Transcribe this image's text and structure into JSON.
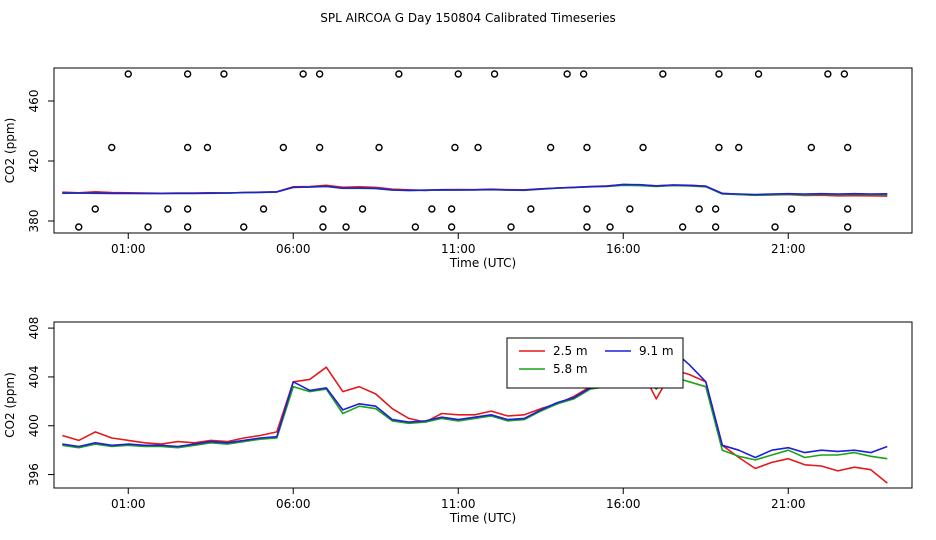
{
  "title": "SPL AIRCOA G  Day 150804  Calibrated Timeseries",
  "colors": {
    "red": "#e31a1c",
    "green": "#1aa31a",
    "blue": "#1f1fd8"
  },
  "chart_data": [
    {
      "type": "line",
      "xlabel": "Time (UTC)",
      "ylabel": "CO2 (ppm)",
      "x_ticks": [
        "01:00",
        "06:00",
        "11:00",
        "16:00",
        "21:00"
      ],
      "x_tick_hours": [
        1,
        6,
        11,
        16,
        21
      ],
      "y_ticks": [
        "380",
        "420",
        "460"
      ],
      "y_tick_values": [
        380,
        420,
        460
      ],
      "xlim": [
        -1.25,
        24.75
      ],
      "ylim": [
        372,
        482
      ],
      "grid": false,
      "x": [
        -1.0,
        -0.5,
        0.0,
        0.5,
        1.0,
        1.5,
        2.0,
        2.5,
        3.0,
        3.5,
        4.0,
        4.5,
        5.0,
        5.5,
        6.0,
        6.5,
        7.0,
        7.5,
        8.0,
        8.5,
        9.0,
        9.5,
        10.0,
        10.5,
        11.0,
        11.5,
        12.0,
        12.5,
        13.0,
        13.5,
        14.0,
        14.5,
        15.0,
        15.5,
        16.0,
        16.5,
        17.0,
        17.5,
        18.0,
        18.5,
        19.0,
        19.5,
        20.0,
        20.5,
        21.0,
        21.5,
        22.0,
        22.5,
        23.0,
        23.5,
        24.0
      ],
      "series": [
        {
          "color": "red",
          "values": [
            399.2,
            398.8,
            399.5,
            399.0,
            398.8,
            398.6,
            398.5,
            398.7,
            398.6,
            398.8,
            398.7,
            399.0,
            399.2,
            399.5,
            402.8,
            403.0,
            403.8,
            402.5,
            402.8,
            402.4,
            401.2,
            400.8,
            400.4,
            400.9,
            401.0,
            400.9,
            401.2,
            400.9,
            400.8,
            401.5,
            402.0,
            402.5,
            403.0,
            403.4,
            404.2,
            404.0,
            403.5,
            404.0,
            403.8,
            403.2,
            398.5,
            397.8,
            397.2,
            397.4,
            397.6,
            397.0,
            397.2,
            396.8,
            396.9,
            396.8,
            396.6
          ]
        },
        {
          "color": "green",
          "values": [
            398.5,
            398.6,
            398.5,
            398.4,
            398.4,
            398.3,
            398.3,
            398.4,
            398.4,
            398.5,
            398.6,
            398.9,
            399.0,
            399.3,
            402.4,
            402.6,
            403.0,
            401.8,
            401.8,
            401.6,
            400.6,
            400.3,
            400.5,
            400.7,
            400.6,
            400.7,
            400.9,
            400.6,
            400.5,
            401.2,
            401.9,
            402.3,
            402.8,
            403.0,
            403.8,
            403.6,
            403.0,
            403.6,
            403.4,
            402.8,
            398.0,
            397.6,
            397.1,
            397.5,
            397.8,
            397.5,
            397.8,
            397.6,
            397.8,
            397.6,
            397.5
          ]
        },
        {
          "color": "blue",
          "values": [
            398.6,
            398.7,
            398.6,
            398.5,
            398.5,
            398.4,
            398.4,
            398.5,
            398.5,
            398.6,
            398.7,
            399.0,
            399.1,
            399.4,
            402.5,
            402.7,
            403.1,
            401.9,
            402.0,
            401.8,
            400.7,
            400.4,
            400.6,
            400.8,
            400.7,
            400.8,
            401.0,
            400.7,
            400.6,
            401.3,
            402.0,
            402.4,
            402.9,
            403.2,
            404.4,
            404.2,
            403.4,
            404.0,
            403.8,
            403.2,
            398.3,
            398.0,
            397.6,
            398.0,
            398.2,
            398.0,
            398.2,
            398.0,
            398.2,
            398.0,
            398.1
          ]
        }
      ],
      "points": [
        {
          "x": -0.5,
          "y": 376
        },
        {
          "x": 0.0,
          "y": 388
        },
        {
          "x": 0.5,
          "y": 429
        },
        {
          "x": 1.0,
          "y": 478
        },
        {
          "x": 1.6,
          "y": 376
        },
        {
          "x": 2.2,
          "y": 388
        },
        {
          "x": 2.8,
          "y": 429
        },
        {
          "x": 2.8,
          "y": 478
        },
        {
          "x": 2.8,
          "y": 388
        },
        {
          "x": 2.8,
          "y": 376
        },
        {
          "x": 3.4,
          "y": 429
        },
        {
          "x": 3.9,
          "y": 478
        },
        {
          "x": 4.5,
          "y": 376
        },
        {
          "x": 5.1,
          "y": 388
        },
        {
          "x": 5.7,
          "y": 429
        },
        {
          "x": 6.3,
          "y": 478
        },
        {
          "x": 6.8,
          "y": 478
        },
        {
          "x": 6.8,
          "y": 429
        },
        {
          "x": 6.9,
          "y": 388
        },
        {
          "x": 6.9,
          "y": 376
        },
        {
          "x": 7.6,
          "y": 376
        },
        {
          "x": 8.1,
          "y": 388
        },
        {
          "x": 8.6,
          "y": 429
        },
        {
          "x": 9.2,
          "y": 478
        },
        {
          "x": 9.7,
          "y": 376
        },
        {
          "x": 10.2,
          "y": 388
        },
        {
          "x": 10.8,
          "y": 388
        },
        {
          "x": 10.8,
          "y": 376
        },
        {
          "x": 10.9,
          "y": 429
        },
        {
          "x": 11.0,
          "y": 478
        },
        {
          "x": 11.6,
          "y": 429
        },
        {
          "x": 12.1,
          "y": 478
        },
        {
          "x": 12.6,
          "y": 376
        },
        {
          "x": 13.2,
          "y": 388
        },
        {
          "x": 13.8,
          "y": 429
        },
        {
          "x": 14.3,
          "y": 478
        },
        {
          "x": 14.8,
          "y": 478
        },
        {
          "x": 14.9,
          "y": 429
        },
        {
          "x": 14.9,
          "y": 388
        },
        {
          "x": 14.9,
          "y": 376
        },
        {
          "x": 15.6,
          "y": 376
        },
        {
          "x": 16.2,
          "y": 388
        },
        {
          "x": 16.6,
          "y": 429
        },
        {
          "x": 17.2,
          "y": 478
        },
        {
          "x": 17.8,
          "y": 376
        },
        {
          "x": 18.3,
          "y": 388
        },
        {
          "x": 18.8,
          "y": 388
        },
        {
          "x": 18.8,
          "y": 376
        },
        {
          "x": 18.9,
          "y": 429
        },
        {
          "x": 18.9,
          "y": 478
        },
        {
          "x": 19.5,
          "y": 429
        },
        {
          "x": 20.1,
          "y": 478
        },
        {
          "x": 20.6,
          "y": 376
        },
        {
          "x": 21.1,
          "y": 388
        },
        {
          "x": 21.7,
          "y": 429
        },
        {
          "x": 22.2,
          "y": 478
        },
        {
          "x": 22.7,
          "y": 478
        },
        {
          "x": 22.8,
          "y": 429
        },
        {
          "x": 22.8,
          "y": 388
        },
        {
          "x": 22.8,
          "y": 376
        }
      ]
    },
    {
      "type": "line",
      "xlabel": "Time (UTC)",
      "ylabel": "CO2 (ppm)",
      "x_ticks": [
        "01:00",
        "06:00",
        "11:00",
        "16:00",
        "21:00"
      ],
      "x_tick_hours": [
        1,
        6,
        11,
        16,
        21
      ],
      "y_ticks": [
        "396",
        "400",
        "404",
        "408"
      ],
      "y_tick_values": [
        396,
        400,
        404,
        408
      ],
      "xlim": [
        -1.25,
        24.75
      ],
      "ylim": [
        394.9,
        408.5
      ],
      "grid": false,
      "legend": {
        "position": "top-right-center",
        "entries": [
          {
            "label": "2.5 m",
            "color": "red"
          },
          {
            "label": "5.8 m",
            "color": "green"
          },
          {
            "label": "9.1 m",
            "color": "blue"
          }
        ]
      },
      "x": [
        -1.0,
        -0.5,
        0.0,
        0.5,
        1.0,
        1.5,
        2.0,
        2.5,
        3.0,
        3.5,
        4.0,
        4.5,
        5.0,
        5.5,
        6.0,
        6.5,
        7.0,
        7.5,
        8.0,
        8.5,
        9.0,
        9.5,
        10.0,
        10.5,
        11.0,
        11.5,
        12.0,
        12.5,
        13.0,
        13.5,
        14.0,
        14.5,
        15.0,
        15.5,
        16.0,
        16.5,
        17.0,
        17.5,
        18.0,
        18.5,
        19.0,
        19.5,
        20.0,
        20.5,
        21.0,
        21.5,
        22.0,
        22.5,
        23.0,
        23.5,
        24.0
      ],
      "series": [
        {
          "label": "2.5 m",
          "color": "red",
          "values": [
            399.2,
            398.8,
            399.5,
            399.0,
            398.8,
            398.6,
            398.5,
            398.7,
            398.6,
            398.8,
            398.7,
            399.0,
            399.2,
            399.5,
            403.6,
            403.8,
            404.8,
            402.8,
            403.2,
            402.6,
            401.4,
            400.6,
            400.3,
            401.0,
            400.9,
            400.9,
            401.2,
            400.8,
            400.9,
            401.4,
            401.8,
            402.4,
            403.2,
            403.6,
            405.6,
            404.8,
            402.2,
            404.6,
            404.2,
            403.6,
            398.4,
            397.4,
            396.5,
            397.0,
            397.3,
            396.8,
            396.7,
            396.3,
            396.6,
            396.4,
            395.3
          ]
        },
        {
          "label": "5.8 m",
          "color": "green",
          "values": [
            398.4,
            398.2,
            398.5,
            398.3,
            398.4,
            398.3,
            398.3,
            398.2,
            398.4,
            398.6,
            398.5,
            398.7,
            398.9,
            399.0,
            403.2,
            402.8,
            403.0,
            401.0,
            401.6,
            401.4,
            400.4,
            400.2,
            400.3,
            400.6,
            400.4,
            400.6,
            400.8,
            400.4,
            400.5,
            401.2,
            401.8,
            402.2,
            403.0,
            403.2,
            404.6,
            404.2,
            403.0,
            404.0,
            403.6,
            403.2,
            398.0,
            397.5,
            397.2,
            397.6,
            398.0,
            397.4,
            397.6,
            397.6,
            397.8,
            397.5,
            397.3
          ]
        },
        {
          "label": "9.1 m",
          "color": "blue",
          "values": [
            398.5,
            398.3,
            398.6,
            398.4,
            398.5,
            398.4,
            398.4,
            398.3,
            398.5,
            398.7,
            398.6,
            398.8,
            399.0,
            399.1,
            403.6,
            402.9,
            403.1,
            401.3,
            401.8,
            401.6,
            400.5,
            400.3,
            400.4,
            400.7,
            400.5,
            400.7,
            400.9,
            400.5,
            400.6,
            401.3,
            401.9,
            402.3,
            403.1,
            403.3,
            405.2,
            404.6,
            403.8,
            406.2,
            405.0,
            403.6,
            398.4,
            398.0,
            397.4,
            398.0,
            398.2,
            397.8,
            398.0,
            397.9,
            398.0,
            397.8,
            398.3
          ]
        }
      ]
    }
  ]
}
